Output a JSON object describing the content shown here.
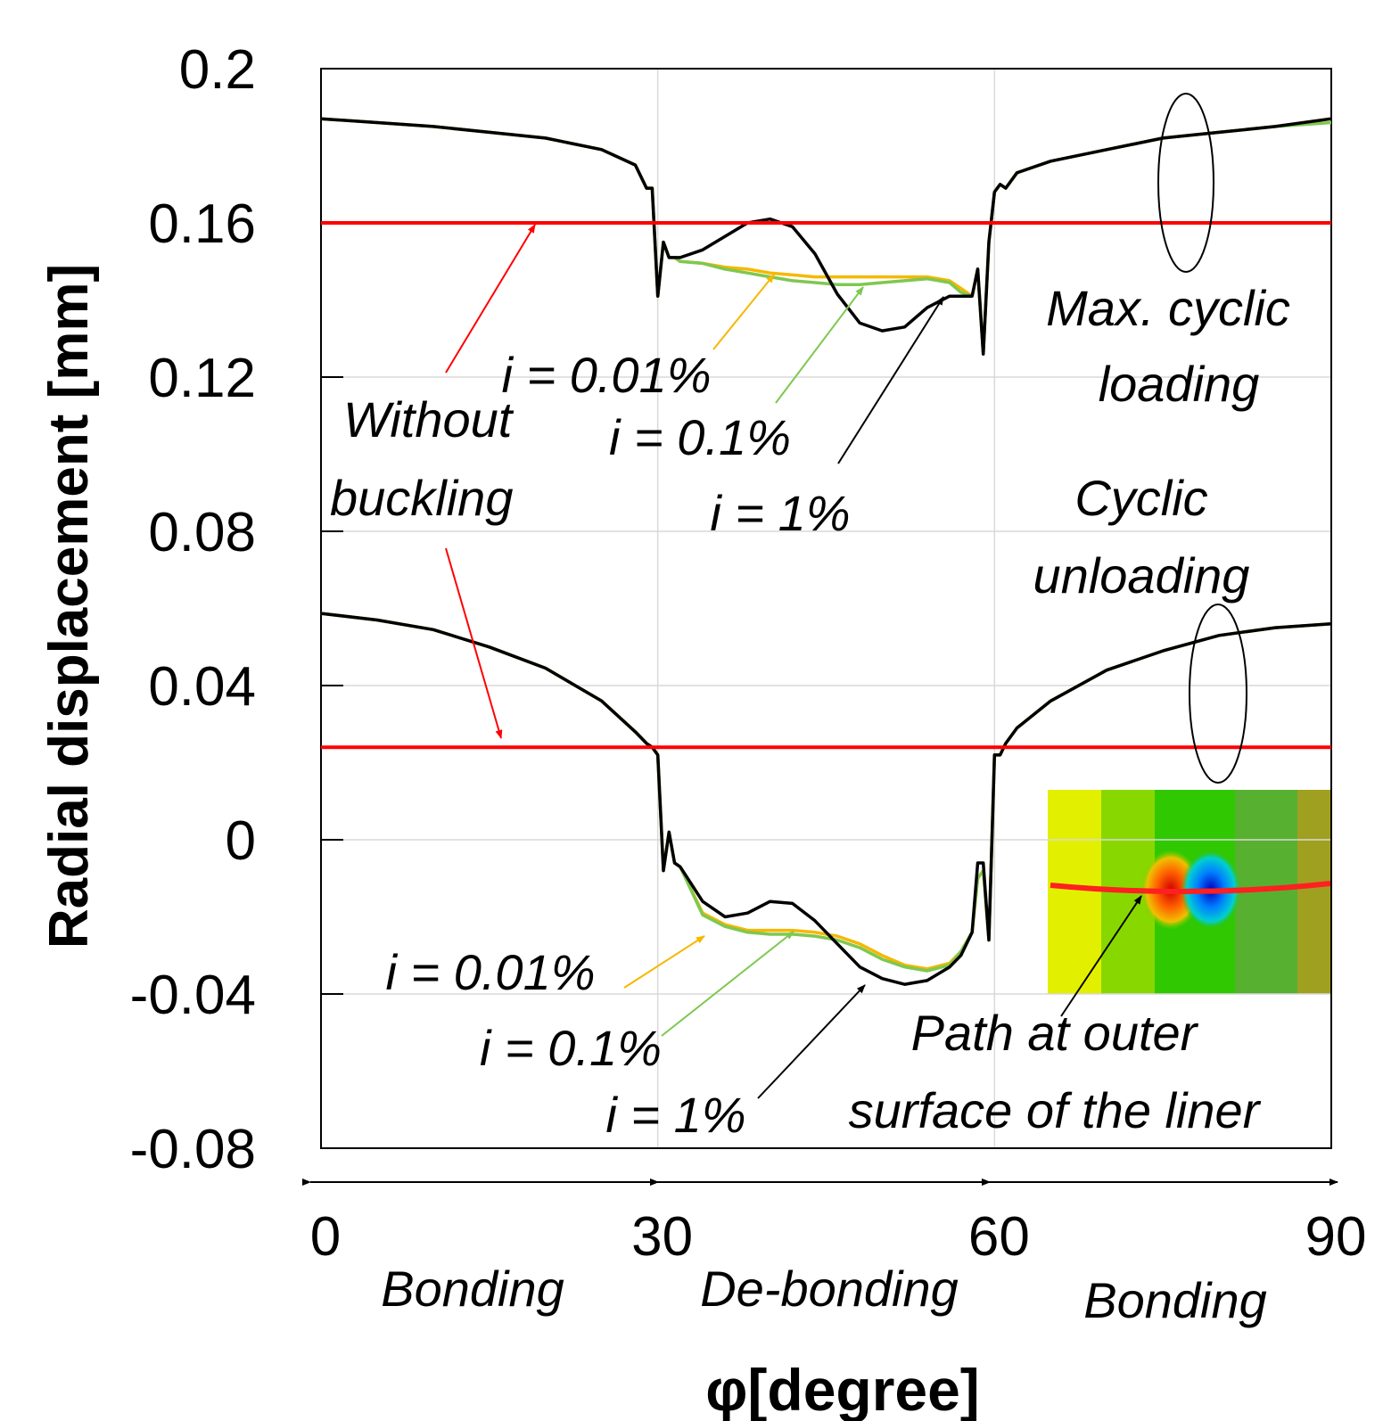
{
  "chart_data": {
    "type": "line",
    "x_label": "φ[degree]",
    "y_label": "Radial displacement [mm]",
    "x": [
      0,
      5,
      10,
      15,
      20,
      25,
      28,
      29,
      29.5,
      30,
      30.5,
      31,
      31.5,
      32,
      34,
      36,
      38,
      40,
      42,
      44,
      46,
      48,
      50,
      52,
      54,
      56,
      57,
      58,
      58.5,
      59,
      59.5,
      60,
      60.5,
      61,
      62,
      65,
      70,
      75,
      80,
      85,
      90
    ],
    "xlim": [
      0,
      90
    ],
    "xticks": [
      0,
      30,
      60,
      90
    ],
    "ylim": [
      -0.08,
      0.2
    ],
    "yticks": [
      -0.08,
      -0.04,
      0,
      0.04,
      0.08,
      0.12,
      0.16,
      0.2
    ],
    "grid": true,
    "series": [
      {
        "name": "i = 0.01%",
        "color": "#f5b800",
        "values": [
          0.187,
          0.186,
          0.185,
          0.1835,
          0.182,
          0.179,
          0.175,
          0.169,
          0.169,
          0.141,
          0.155,
          0.151,
          0.151,
          0.15,
          0.1495,
          0.1485,
          0.148,
          0.147,
          0.1465,
          0.146,
          0.146,
          0.146,
          0.146,
          0.146,
          0.146,
          0.145,
          0.143,
          0.141,
          0.148,
          0.126,
          0.155,
          0.168,
          0.17,
          0.169,
          0.173,
          0.176,
          0.179,
          0.182,
          0.1835,
          0.185,
          0.187
        ]
      },
      {
        "name": "i = 0.1%",
        "color": "#7ec850",
        "values": [
          0.187,
          0.186,
          0.185,
          0.1835,
          0.182,
          0.179,
          0.175,
          0.169,
          0.169,
          0.141,
          0.155,
          0.151,
          0.151,
          0.15,
          0.1495,
          0.148,
          0.147,
          0.146,
          0.145,
          0.1445,
          0.144,
          0.144,
          0.1445,
          0.145,
          0.1455,
          0.1445,
          0.142,
          0.141,
          0.148,
          0.126,
          0.155,
          0.168,
          0.17,
          0.169,
          0.173,
          0.176,
          0.179,
          0.182,
          0.1835,
          0.185,
          0.186
        ]
      },
      {
        "name": "i = 1%",
        "color": "#000000",
        "values": [
          0.187,
          0.186,
          0.185,
          0.1835,
          0.182,
          0.179,
          0.175,
          0.169,
          0.169,
          0.141,
          0.155,
          0.151,
          0.151,
          0.151,
          0.153,
          0.1565,
          0.16,
          0.161,
          0.159,
          0.152,
          0.1415,
          0.134,
          0.132,
          0.133,
          0.138,
          0.141,
          0.141,
          0.141,
          0.148,
          0.126,
          0.155,
          0.168,
          0.17,
          0.169,
          0.173,
          0.176,
          0.179,
          0.182,
          0.1835,
          0.185,
          0.187
        ]
      },
      {
        "name": "i = 0.01%",
        "color": "#f5b800",
        "values": [
          0.0587,
          0.057,
          0.0545,
          0.05,
          0.0445,
          0.036,
          0.028,
          0.025,
          0.024,
          0.022,
          -0.008,
          0.002,
          -0.006,
          -0.007,
          -0.019,
          -0.022,
          -0.0235,
          -0.0235,
          -0.0235,
          -0.024,
          -0.025,
          -0.027,
          -0.03,
          -0.0325,
          -0.0335,
          -0.032,
          -0.029,
          -0.024,
          -0.01,
          -0.008,
          -0.026,
          0.022,
          0.022,
          0.025,
          0.029,
          0.036,
          0.044,
          0.049,
          0.053,
          0.055,
          0.056
        ]
      },
      {
        "name": "i = 0.1%",
        "color": "#7ec850",
        "values": [
          0.0587,
          0.057,
          0.0545,
          0.05,
          0.0445,
          0.036,
          0.028,
          0.025,
          0.024,
          0.022,
          -0.008,
          0.002,
          -0.006,
          -0.007,
          -0.0195,
          -0.0225,
          -0.024,
          -0.0245,
          -0.0245,
          -0.025,
          -0.026,
          -0.028,
          -0.031,
          -0.033,
          -0.034,
          -0.0325,
          -0.029,
          -0.024,
          -0.01,
          -0.008,
          -0.026,
          0.022,
          0.022,
          0.025,
          0.029,
          0.036,
          0.044,
          0.049,
          0.053,
          0.055,
          0.056
        ]
      },
      {
        "name": "i = 1%",
        "color": "#000000",
        "values": [
          0.0587,
          0.057,
          0.0545,
          0.05,
          0.0445,
          0.036,
          0.028,
          0.025,
          0.024,
          0.022,
          -0.008,
          0.002,
          -0.006,
          -0.007,
          -0.016,
          -0.02,
          -0.019,
          -0.016,
          -0.0165,
          -0.021,
          -0.027,
          -0.033,
          -0.036,
          -0.0375,
          -0.0365,
          -0.033,
          -0.03,
          -0.024,
          -0.006,
          -0.006,
          -0.026,
          0.022,
          0.022,
          0.025,
          0.029,
          0.036,
          0.044,
          0.049,
          0.053,
          0.055,
          0.056
        ]
      },
      {
        "name": "Without buckling",
        "color": "#ff0000",
        "x": [
          0,
          90
        ],
        "values": [
          0.16,
          0.16
        ]
      },
      {
        "color": "#ff0000",
        "x": [
          0,
          90
        ],
        "values": [
          0.024,
          0.024
        ]
      }
    ],
    "annotations": [
      "Max. cyclic",
      "loading",
      "Cyclic",
      "unloading",
      "Path at outer",
      "surface of  the liner",
      "Bonding",
      "De-bonding",
      "Bonding"
    ]
  }
}
